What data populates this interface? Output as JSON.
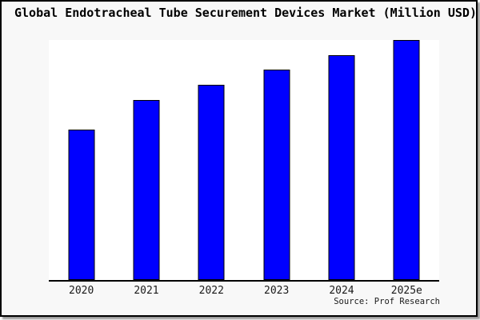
{
  "window": {
    "bg_color": "#f8f8f8",
    "border_color": "#000000",
    "shadow_color": "#999999"
  },
  "header": {
    "title": "Global Endotracheal Tube Securement Devices Market (Million USD)"
  },
  "chart_data": {
    "type": "bar",
    "title": "Global Endotracheal Tube Securement Devices Market (Million USD)",
    "categories": [
      "2020",
      "2021",
      "2022",
      "2023",
      "2024",
      "2025e"
    ],
    "values_pct_of_max": [
      62.7,
      75.0,
      81.3,
      87.7,
      93.7,
      100
    ],
    "xlabel": "",
    "ylabel": "",
    "y_axis_labels_visible": false,
    "grid": false,
    "legend": "none",
    "bar_color": "#0000ff",
    "bar_edge_color": "#000000",
    "plot_bg": "#ffffff",
    "axis_line_color": "#000000"
  },
  "footer": {
    "source_label": "Source: Prof Research"
  }
}
